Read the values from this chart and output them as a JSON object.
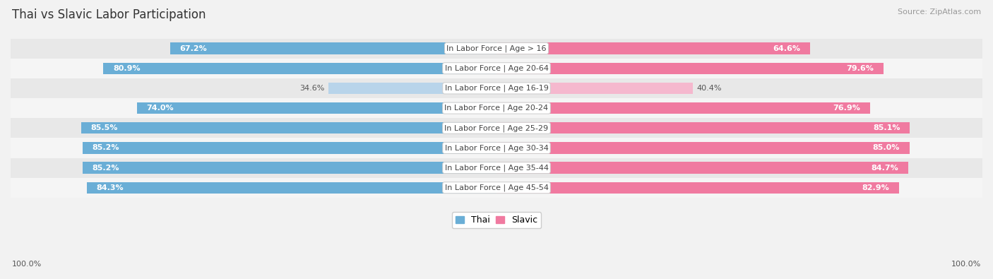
{
  "title": "Thai vs Slavic Labor Participation",
  "source": "Source: ZipAtlas.com",
  "categories": [
    "In Labor Force | Age > 16",
    "In Labor Force | Age 20-64",
    "In Labor Force | Age 16-19",
    "In Labor Force | Age 20-24",
    "In Labor Force | Age 25-29",
    "In Labor Force | Age 30-34",
    "In Labor Force | Age 35-44",
    "In Labor Force | Age 45-54"
  ],
  "thai_values": [
    67.2,
    80.9,
    34.6,
    74.0,
    85.5,
    85.2,
    85.2,
    84.3
  ],
  "slavic_values": [
    64.6,
    79.6,
    40.4,
    76.9,
    85.1,
    85.0,
    84.7,
    82.9
  ],
  "thai_color_full": "#6aaed6",
  "thai_color_light": "#b8d4ea",
  "slavic_color_full": "#f07aa0",
  "slavic_color_light": "#f5b8ce",
  "bg_color": "#f2f2f2",
  "row_bg_even": "#e8e8e8",
  "row_bg_odd": "#f5f5f5",
  "max_val": 100.0,
  "bar_height": 0.58,
  "title_fontsize": 12,
  "label_fontsize": 8,
  "value_fontsize": 8,
  "axis_label_fontsize": 8,
  "legend_fontsize": 9
}
